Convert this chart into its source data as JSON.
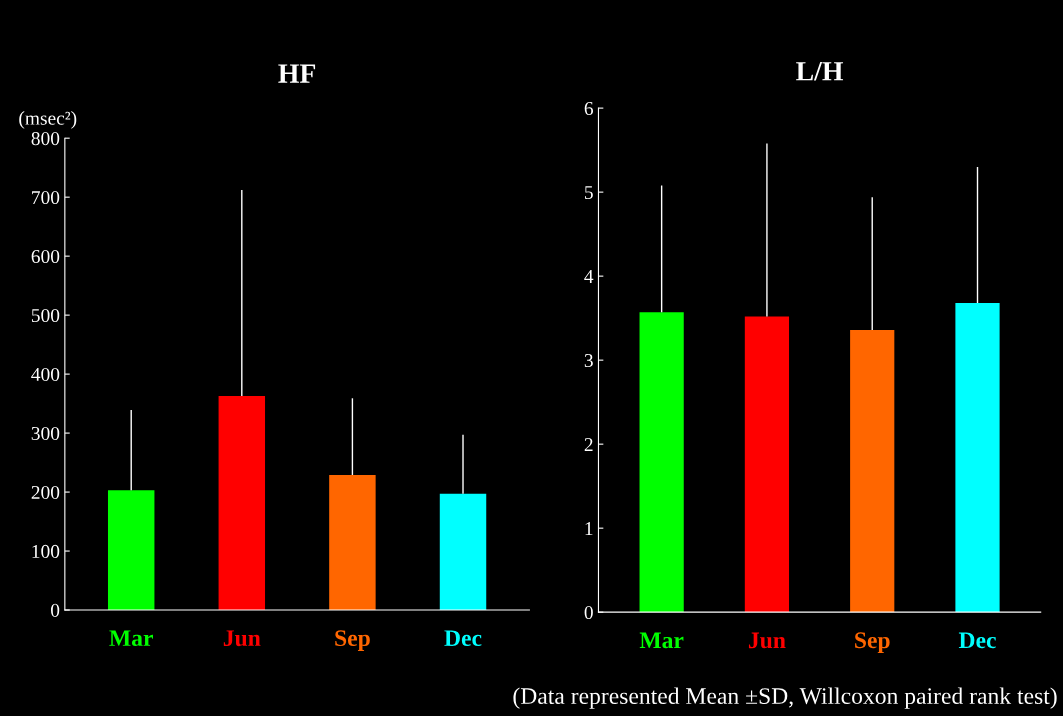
{
  "chart_data": [
    {
      "type": "bar",
      "title": "HF",
      "ylabel": "(msec²)",
      "categories": [
        "Mar",
        "Jun",
        "Sep",
        "Dec"
      ],
      "values": [
        203,
        363,
        229,
        197
      ],
      "colors": [
        "#00ff00",
        "#ff0000",
        "#ff6600",
        "#00ffff"
      ],
      "errors": [
        [
          203,
          339
        ],
        [
          363,
          712
        ],
        [
          229,
          359
        ],
        [
          197,
          297
        ]
      ],
      "ylim": [
        0,
        800
      ],
      "yticks": [
        0,
        100,
        200,
        300,
        400,
        500,
        600,
        700,
        800
      ],
      "grid": false,
      "legend": false
    },
    {
      "type": "bar",
      "title": "L/H",
      "categories": [
        "Mar",
        "Jun",
        "Sep",
        "Dec"
      ],
      "values": [
        3.57,
        3.52,
        3.36,
        3.68
      ],
      "colors": [
        "#00ff00",
        "#ff0000",
        "#ff6600",
        "#00ffff"
      ],
      "errors": [
        [
          3.57,
          5.08
        ],
        [
          3.52,
          5.58
        ],
        [
          3.36,
          4.94
        ],
        [
          3.68,
          5.3
        ]
      ],
      "ylim": [
        0,
        6
      ],
      "yticks": [
        0,
        1,
        2,
        3,
        4,
        5,
        6
      ],
      "grid": false,
      "legend": false,
      "annotations": [
        "(Data represented Mean ±SD, Willcoxon paired rank test)"
      ]
    }
  ]
}
